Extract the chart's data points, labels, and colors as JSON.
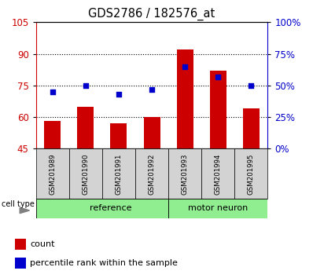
{
  "title": "GDS2786 / 182576_at",
  "samples": [
    "GSM201989",
    "GSM201990",
    "GSM201991",
    "GSM201992",
    "GSM201993",
    "GSM201994",
    "GSM201995"
  ],
  "count_values": [
    58,
    65,
    57,
    60,
    92,
    82,
    64
  ],
  "percentile_values": [
    45,
    50,
    43,
    47,
    65,
    57,
    50
  ],
  "group_boundary": 4,
  "ref_label": "reference",
  "motor_label": "motor neuron",
  "left_ylim": [
    45,
    105
  ],
  "right_ylim": [
    0,
    100
  ],
  "left_yticks": [
    45,
    60,
    75,
    90,
    105
  ],
  "right_yticks": [
    0,
    25,
    50,
    75,
    100
  ],
  "right_yticklabels": [
    "0%",
    "25%",
    "50%",
    "75%",
    "100%"
  ],
  "left_color": "#cc0000",
  "right_color": "#0000cc",
  "bar_color": "#cc0000",
  "dot_color": "#0000cc",
  "plot_bg": "#ffffff",
  "sample_box_bg": "#d3d3d3",
  "ref_bg": "#90ee90",
  "motor_bg": "#90ee90",
  "legend_count_label": "count",
  "legend_pct_label": "percentile rank within the sample",
  "cell_type_label": "cell type",
  "grid_lines_at": [
    60,
    75,
    90
  ],
  "bar_width": 0.5
}
